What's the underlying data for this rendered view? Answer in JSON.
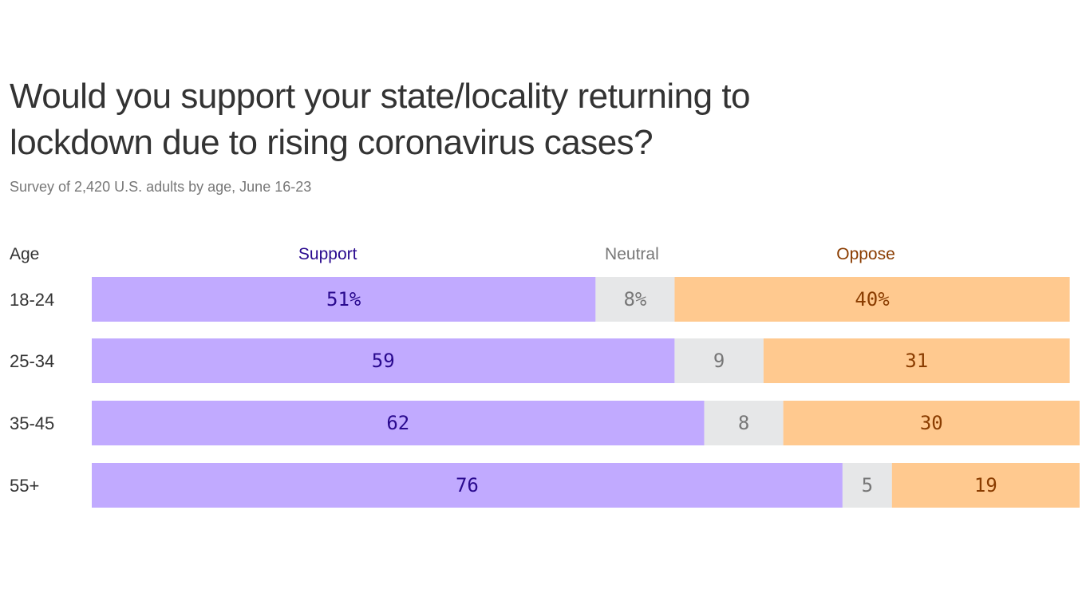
{
  "chart_data": {
    "type": "bar",
    "stacked": true,
    "orientation": "horizontal",
    "title": "Would you support your state/locality returning to lockdown due to rising coronavirus cases?",
    "subtitle": "Survey of 2,420 U.S. adults by age, June 16-23",
    "category_header": "Age",
    "categories": [
      "18-24",
      "25-34",
      "35-45",
      "55+"
    ],
    "series": [
      {
        "name": "Support",
        "values": [
          51,
          59,
          62,
          76
        ],
        "color": "#c1aaff",
        "text_color": "#2a0a8f"
      },
      {
        "name": "Neutral",
        "values": [
          8,
          9,
          8,
          5
        ],
        "color": "#e6e7e8",
        "text_color": "#777777"
      },
      {
        "name": "Oppose",
        "values": [
          40,
          31,
          30,
          19
        ],
        "color": "#ffc98f",
        "text_color": "#8a3c00"
      }
    ],
    "first_row_suffix": "%",
    "xlim": [
      0,
      100
    ],
    "grid": false
  }
}
